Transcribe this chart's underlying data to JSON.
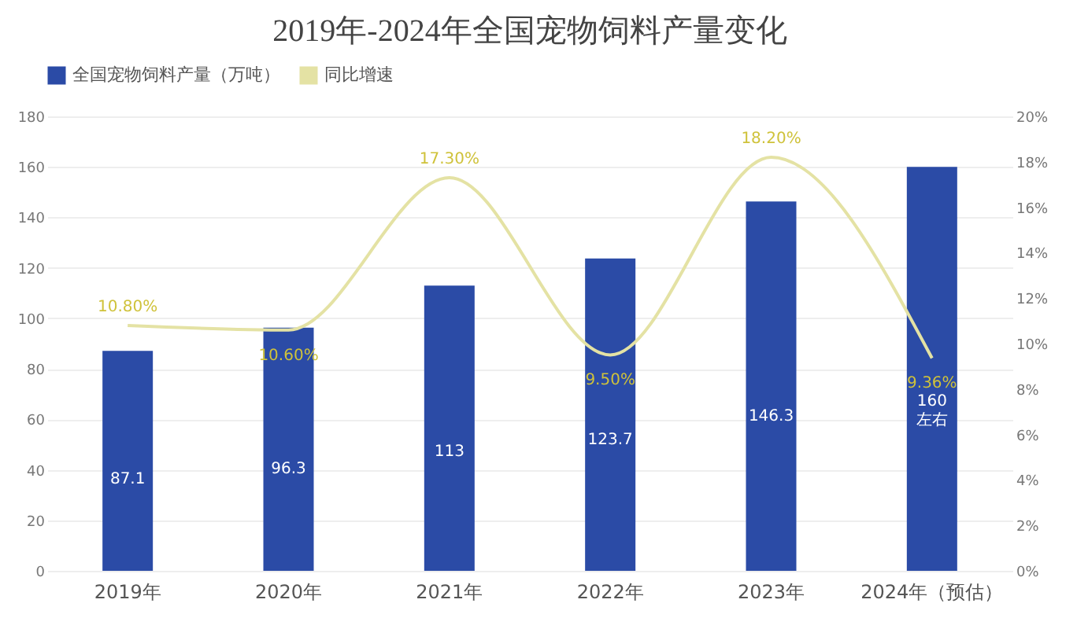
{
  "chart_data": {
    "type": "bar",
    "title": "2019年-2024年全国宠物饲料产量变化",
    "categories": [
      "2019年",
      "2020年",
      "2021年",
      "2022年",
      "2023年",
      "2024年（预估）"
    ],
    "series": [
      {
        "name": "全国宠物饲料产量（万吨）",
        "color": "#2b4ba6",
        "values": [
          87.1,
          96.3,
          113,
          123.7,
          146.3,
          160
        ],
        "value_labels": [
          "87.1",
          "96.3",
          "113",
          "123.7",
          "146.3",
          "160左右"
        ]
      },
      {
        "name": "同比增速",
        "type": "line",
        "axis": "y2",
        "color": "#e4e2a4",
        "values": [
          10.8,
          10.6,
          17.3,
          9.5,
          18.2,
          9.36
        ],
        "value_labels": [
          "10.80%",
          "10.60%",
          "17.30%",
          "9.50%",
          "18.20%",
          "9.36%"
        ]
      }
    ],
    "ylim": [
      0,
      180
    ],
    "yticks": [
      0,
      20,
      40,
      60,
      80,
      100,
      120,
      140,
      160,
      180
    ],
    "y2lim": [
      0,
      20
    ],
    "y2ticks": [
      {
        "value": 0,
        "label": "0%"
      },
      {
        "value": 2,
        "label": "2%"
      },
      {
        "value": 4,
        "label": "4%"
      },
      {
        "value": 6,
        "label": "6%"
      },
      {
        "value": 8,
        "label": "8%"
      },
      {
        "value": 10,
        "label": "10%"
      },
      {
        "value": 12,
        "label": "12%"
      },
      {
        "value": 14,
        "label": "14%"
      },
      {
        "value": 16,
        "label": "16%"
      },
      {
        "value": 18,
        "label": "18%"
      },
      {
        "value": 20,
        "label": "20%"
      }
    ],
    "grid": "y",
    "legend": "top",
    "marker": "none",
    "line_style": "solid"
  }
}
